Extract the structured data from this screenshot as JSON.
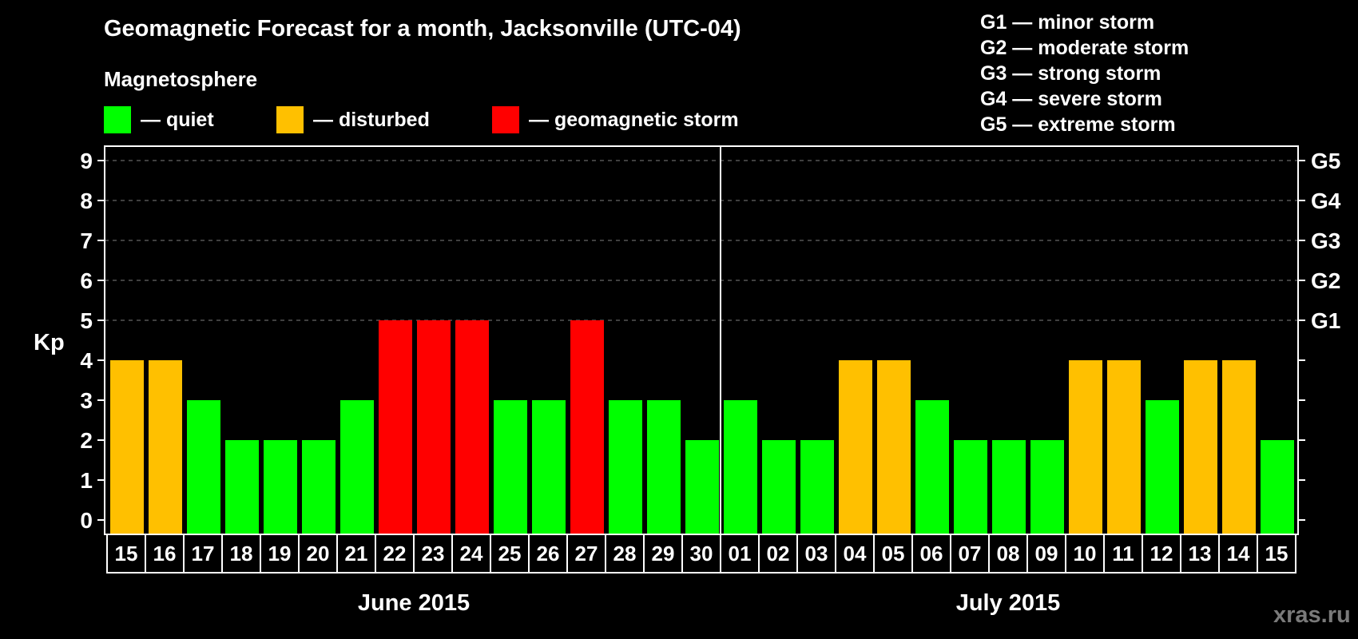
{
  "title": "Geomagnetic Forecast for a month, Jacksonville (UTC-04)",
  "subtitle": "Magnetosphere",
  "legend": [
    {
      "label": "— quiet",
      "color": "#00ff00"
    },
    {
      "label": "— disturbed",
      "color": "#ffc000"
    },
    {
      "label": "— geomagnetic storm",
      "color": "#ff0000"
    }
  ],
  "g_scale": [
    "G1 — minor storm",
    "G2 — moderate storm",
    "G3 — strong storm",
    "G4 — severe storm",
    "G5 — extreme storm"
  ],
  "watermark": "xras.ru",
  "colors": {
    "quiet": "#00ff00",
    "disturbed": "#ffc000",
    "storm": "#ff0000",
    "grid": "#808080",
    "axis": "#ffffff"
  },
  "chart_data": {
    "type": "bar",
    "title": "Geomagnetic Forecast for a month, Jacksonville (UTC-04)",
    "ylabel": "Kp",
    "ylim": [
      0,
      9
    ],
    "yticks": [
      "0",
      "1",
      "2",
      "3",
      "4",
      "5",
      "6",
      "7",
      "8",
      "9"
    ],
    "right_ticks": [
      {
        "value": 5,
        "label": "G1"
      },
      {
        "value": 6,
        "label": "G2"
      },
      {
        "value": 7,
        "label": "G3"
      },
      {
        "value": 8,
        "label": "G4"
      },
      {
        "value": 9,
        "label": "G5"
      }
    ],
    "grid": "dashed at 5–9",
    "months": [
      {
        "label": "June 2015",
        "start_index": 0,
        "end_index": 15
      },
      {
        "label": "July 2015",
        "start_index": 16,
        "end_index": 30
      }
    ],
    "categories": [
      "15",
      "16",
      "17",
      "18",
      "19",
      "20",
      "21",
      "22",
      "23",
      "24",
      "25",
      "26",
      "27",
      "28",
      "29",
      "30",
      "01",
      "02",
      "03",
      "04",
      "05",
      "06",
      "07",
      "08",
      "09",
      "10",
      "11",
      "12",
      "13",
      "14",
      "15"
    ],
    "values": [
      4,
      4,
      3,
      2,
      2,
      2,
      3,
      5,
      5,
      5,
      3,
      3,
      5,
      3,
      3,
      2,
      3,
      2,
      2,
      4,
      4,
      3,
      2,
      2,
      2,
      4,
      4,
      3,
      4,
      4,
      2
    ],
    "status": [
      "disturbed",
      "disturbed",
      "quiet",
      "quiet",
      "quiet",
      "quiet",
      "quiet",
      "storm",
      "storm",
      "storm",
      "quiet",
      "quiet",
      "storm",
      "quiet",
      "quiet",
      "quiet",
      "quiet",
      "quiet",
      "quiet",
      "disturbed",
      "disturbed",
      "quiet",
      "quiet",
      "quiet",
      "quiet",
      "disturbed",
      "disturbed",
      "quiet",
      "disturbed",
      "disturbed",
      "quiet"
    ]
  }
}
